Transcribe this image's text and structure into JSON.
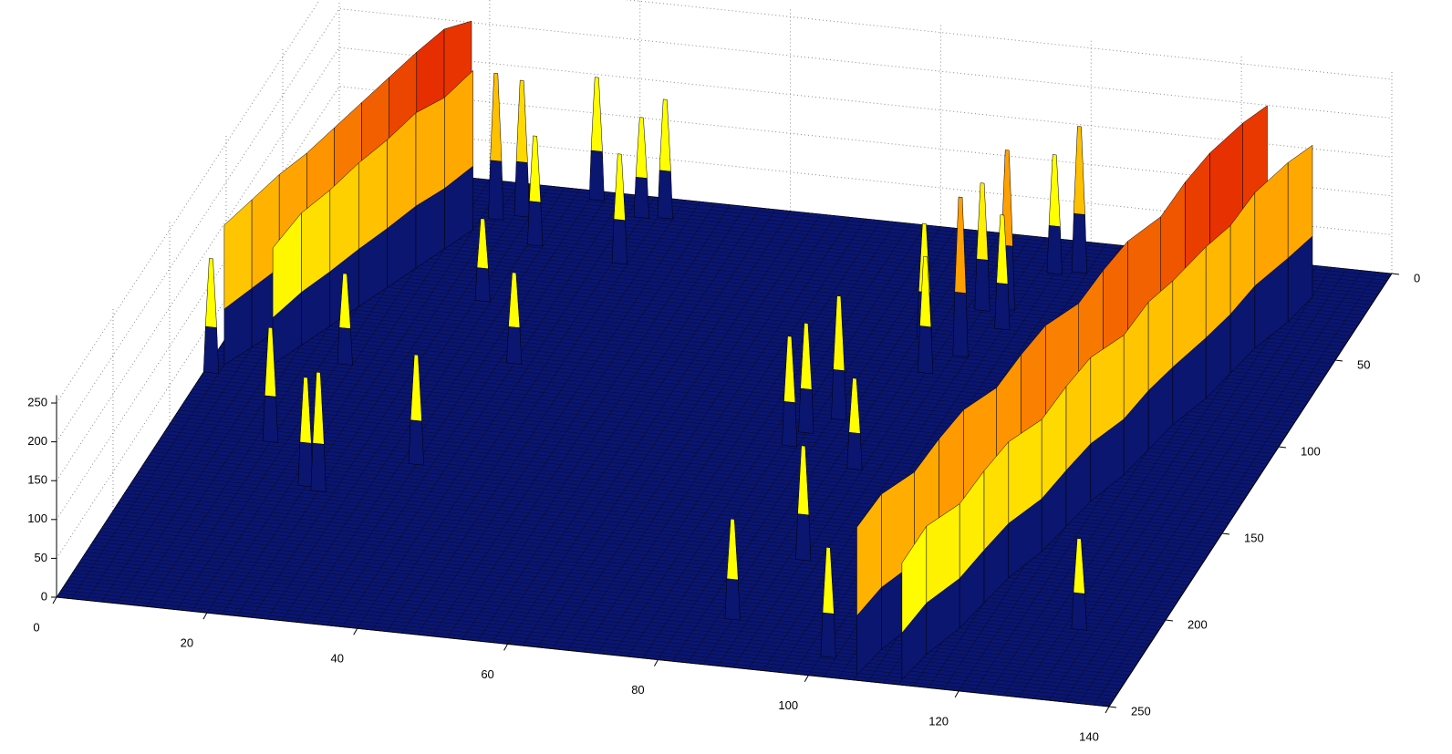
{
  "chart_data": {
    "type": "surface",
    "xlim": [
      0,
      140
    ],
    "xticks": [
      0,
      20,
      40,
      60,
      80,
      100,
      120,
      140
    ],
    "ylim": [
      0,
      250
    ],
    "yticks": [
      0,
      50,
      100,
      150,
      200,
      250
    ],
    "zlim": [
      0,
      260
    ],
    "zticks": [
      0,
      50,
      100,
      150,
      200,
      250
    ],
    "grid": true,
    "colormap": [
      "#0a1670",
      "#0000c8",
      "#ffff00",
      "#ffff00",
      "#ff9900",
      "#e01000"
    ],
    "x": [
      35,
      42,
      45,
      43,
      31,
      24,
      27,
      29,
      38,
      34,
      14,
      24,
      22,
      17,
      1,
      86,
      90,
      80,
      83,
      79,
      89,
      87,
      93,
      92,
      95,
      96,
      98,
      101,
      90,
      130,
      101
    ],
    "y": [
      5,
      12,
      11,
      38,
      33,
      21,
      18,
      66,
      98,
      158,
      154,
      178,
      176,
      108,
      120,
      224,
      188,
      119,
      110,
      127,
      136,
      61,
      69,
      43,
      41,
      52,
      19,
      17,
      80,
      210,
      239
    ],
    "z": [
      158,
      129,
      153,
      141,
      141,
      188,
      175,
      106,
      117,
      141,
      147,
      153,
      140,
      117,
      147,
      129,
      147,
      141,
      159,
      141,
      117,
      147,
      205,
      164,
      205,
      147,
      153,
      188,
      150,
      117,
      141
    ],
    "ridges": [
      {
        "x": [
          2,
          4,
          6,
          8,
          10,
          12,
          14,
          16,
          18,
          20
        ],
        "y": [
          115,
          104,
          93,
          82,
          71,
          60,
          49,
          38,
          27,
          16
        ],
        "z": [
          180,
          190,
          200,
          205,
          215,
          225,
          235,
          245,
          252,
          240
        ]
      },
      {
        "x": [
          8,
          10,
          12,
          14,
          16,
          18,
          20,
          22
        ],
        "y": [
          112,
          100,
          88,
          76,
          64,
          52,
          40,
          28
        ],
        "z": [
          150,
          170,
          175,
          185,
          190,
          200,
          195,
          205
        ]
      },
      {
        "x": [
          106,
          107,
          109,
          110,
          111,
          113,
          114,
          115,
          117,
          118,
          119,
          121,
          122,
          123,
          125,
          126
        ],
        "y": [
          247,
          232,
          216,
          201,
          186,
          170,
          155,
          140,
          124,
          109,
          94,
          78,
          63,
          48,
          32,
          17
        ],
        "z": [
          190,
          200,
          195,
          205,
          210,
          205,
          215,
          220,
          215,
          225,
          230,
          228,
          240,
          245,
          250,
          240
        ]
      },
      {
        "x": [
          112,
          113,
          115,
          116,
          117,
          119,
          120,
          121,
          123,
          124,
          125,
          127,
          128,
          129,
          131,
          132
        ],
        "y": [
          247,
          232,
          216,
          201,
          186,
          170,
          155,
          140,
          124,
          109,
          94,
          78,
          63,
          48,
          32,
          17
        ],
        "z": [
          150,
          165,
          160,
          170,
          175,
          170,
          180,
          185,
          180,
          190,
          185,
          195,
          190,
          200,
          205,
          195
        ]
      }
    ]
  }
}
